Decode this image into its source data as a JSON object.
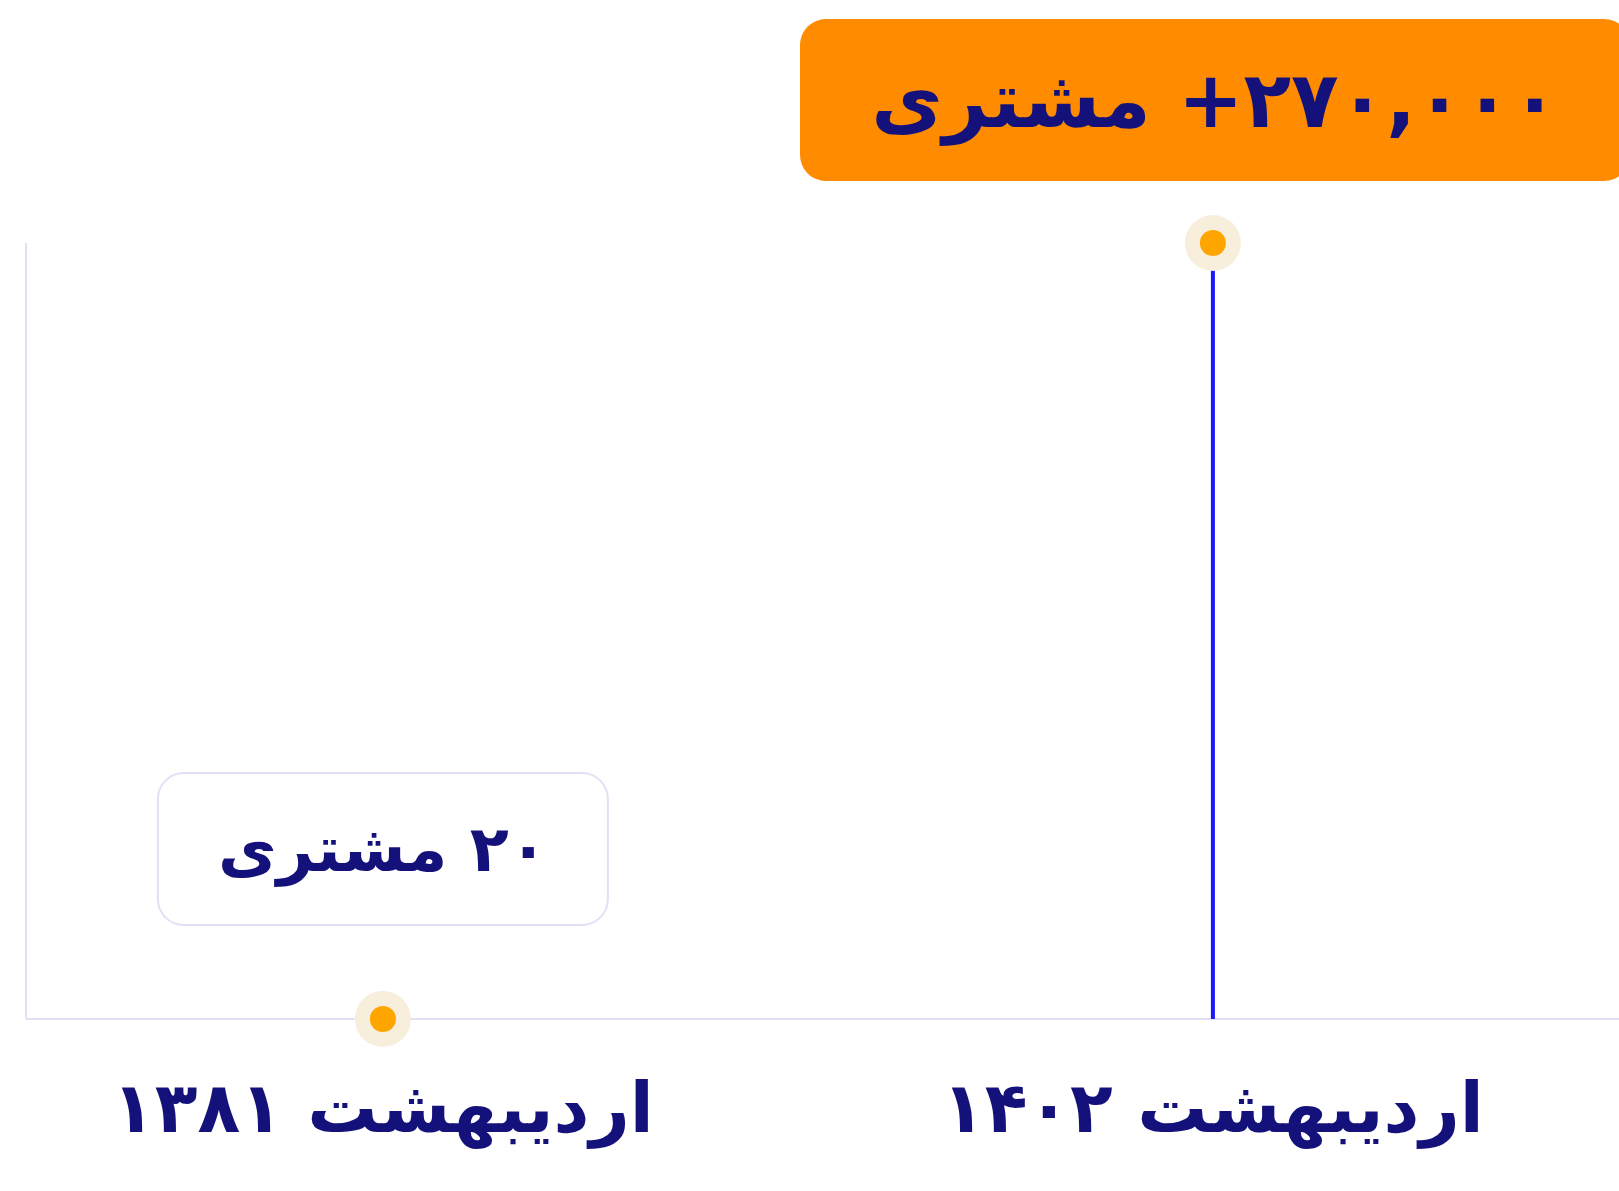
{
  "chart_data": {
    "type": "lollipop",
    "categories": [
      "اردیبهشت ۱۳۸۱",
      "اردیبهشت ۱۴۰۲"
    ],
    "values": [
      20,
      270000
    ],
    "value_labels": [
      "۲۰ مشتری",
      "۲۷۰,۰۰۰+ مشتری"
    ],
    "color": "#1a1aff",
    "colors": [
      "#ffa500",
      "#ffa500"
    ]
  }
}
